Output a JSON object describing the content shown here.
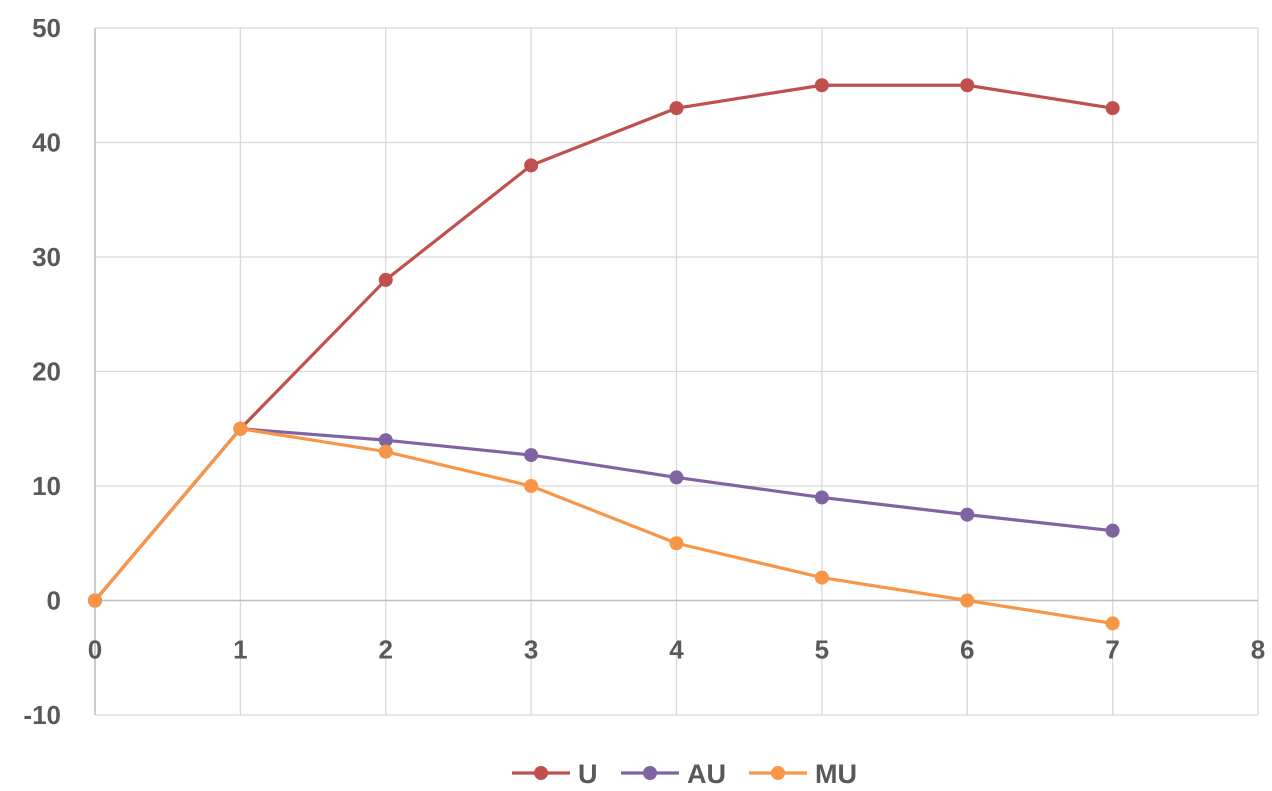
{
  "chart_data": {
    "type": "line",
    "title": "",
    "xlabel": "",
    "ylabel": "",
    "xlim": [
      0,
      8
    ],
    "ylim": [
      -10,
      50
    ],
    "x_ticks": [
      "0",
      "1",
      "2",
      "3",
      "4",
      "5",
      "6",
      "7",
      "8"
    ],
    "y_ticks": [
      "50",
      "40",
      "30",
      "20",
      "10",
      "0",
      "-10"
    ],
    "grid": true,
    "legend_position": "bottom",
    "x": [
      0,
      1,
      2,
      3,
      4,
      5,
      6,
      7
    ],
    "series": [
      {
        "name": "U",
        "color": "#c0504d",
        "values": [
          0,
          15,
          28,
          38,
          43,
          45,
          45,
          43
        ]
      },
      {
        "name": "AU",
        "color": "#8064a2",
        "values": [
          0,
          15,
          14,
          12.7,
          10.75,
          9,
          7.5,
          6.1
        ]
      },
      {
        "name": "MU",
        "color": "#f79646",
        "values": [
          0,
          15,
          13,
          10,
          5,
          2,
          0,
          -2
        ]
      }
    ]
  }
}
